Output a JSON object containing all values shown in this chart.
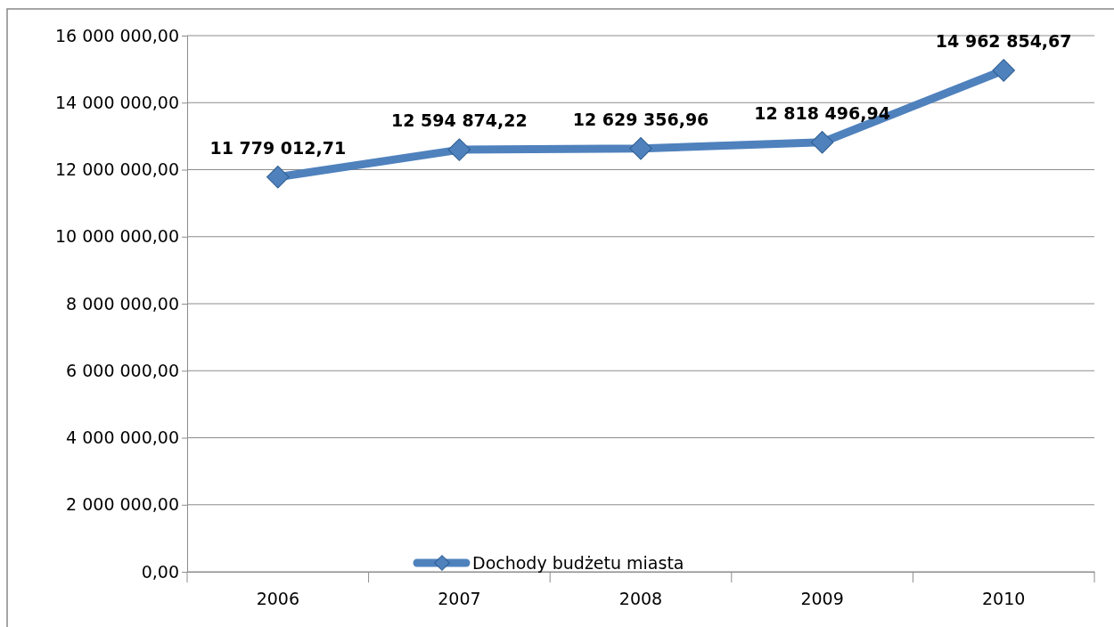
{
  "chart_data": {
    "type": "line",
    "categories": [
      "2006",
      "2007",
      "2008",
      "2009",
      "2010"
    ],
    "series": [
      {
        "name": "Dochody budżetu miasta",
        "color": "#4f81bd",
        "values": [
          11779012.71,
          12594874.22,
          12629356.96,
          12818496.94,
          14962854.67
        ],
        "value_labels": [
          "11 779 012,71",
          "12 594 874,22",
          "12 629 356,96",
          "12 818 496,94",
          "14 962 854,67"
        ]
      }
    ],
    "ylim": [
      0,
      16000000
    ],
    "yticks": [
      {
        "value": 0,
        "label": "0,00"
      },
      {
        "value": 2000000,
        "label": "2 000 000,00"
      },
      {
        "value": 4000000,
        "label": "4 000 000,00"
      },
      {
        "value": 6000000,
        "label": "6 000 000,00"
      },
      {
        "value": 8000000,
        "label": "8 000 000,00"
      },
      {
        "value": 10000000,
        "label": "10 000 000,00"
      },
      {
        "value": 12000000,
        "label": "12 000 000,00"
      },
      {
        "value": 14000000,
        "label": "14 000 000,00"
      },
      {
        "value": 16000000,
        "label": "16 000 000,00"
      }
    ],
    "grid": "y",
    "legend": "bottom",
    "marker": "diamond",
    "line_style": "solid"
  }
}
